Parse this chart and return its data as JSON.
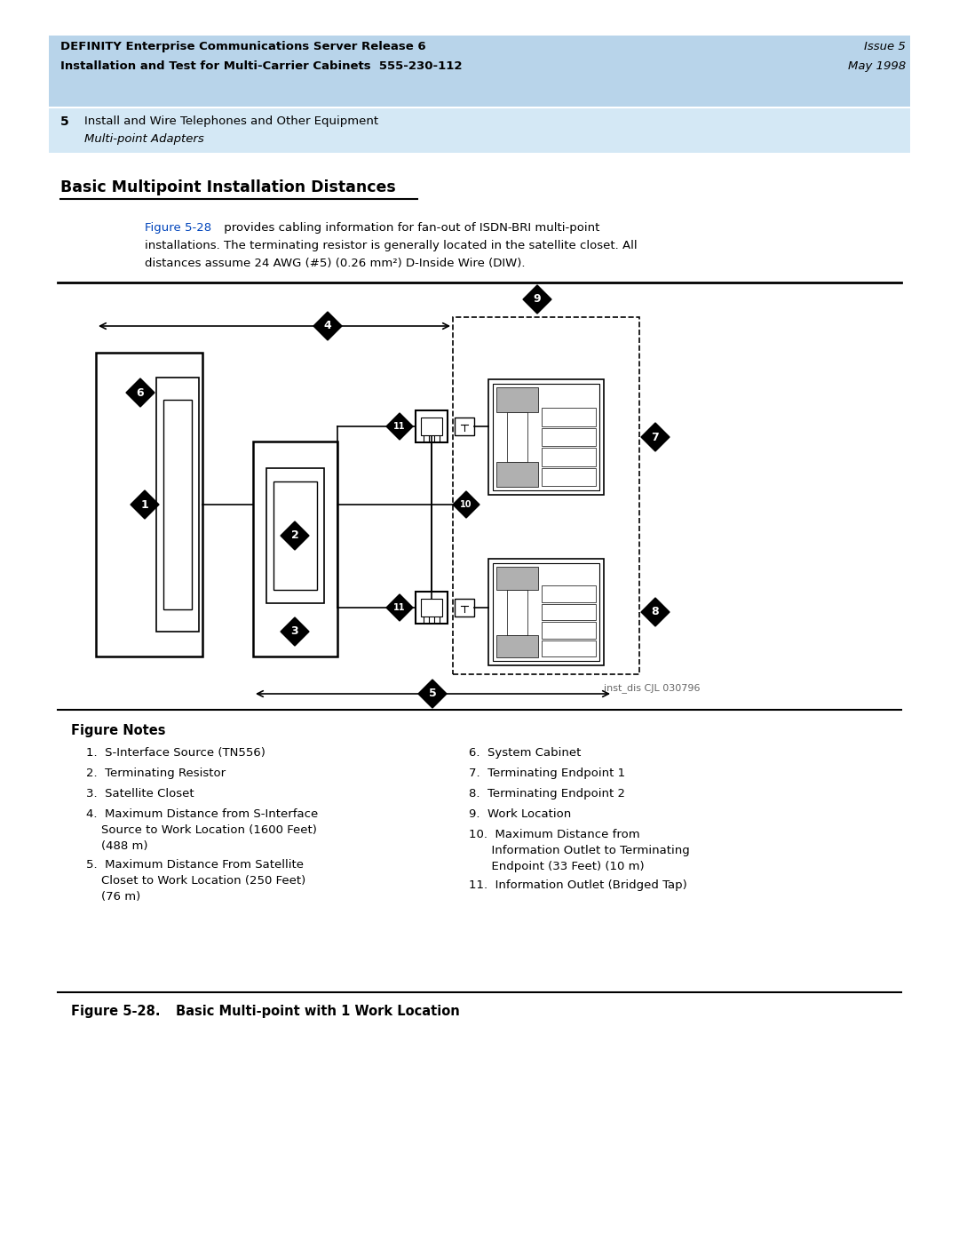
{
  "page_bg": "#ffffff",
  "header_bg": "#b8d4ea",
  "subheader_bg": "#d4e8f5",
  "header_left1": "DEFINITY Enterprise Communications Server Release 6",
  "header_left2": "Installation and Test for Multi-Carrier Cabinets  555-230-112",
  "header_right1": "Issue 5",
  "header_right2": "May 1998",
  "sub_num": "5",
  "sub_text": "Install and Wire Telephones and Other Equipment",
  "sub_italic": "Multi-point Adapters",
  "section_title": "Basic Multipoint Installation Distances",
  "body_link": "Figure 5-28",
  "body_line1": " provides cabling information for fan-out of ISDN-BRI multi-point",
  "body_line2": "installations. The terminating resistor is generally located in the satellite closet. All",
  "body_line3": "distances assume 24 AWG (#5) (0.26 mm²) D-Inside Wire (DIW).",
  "watermark": "inst_dis CJL 030796",
  "fn_title": "Figure Notes",
  "col1_notes": [
    "1.  S-Interface Source (TN556)",
    "2.  Terminating Resistor",
    "3.  Satellite Closet",
    "4.  Maximum Distance from S-Interface\n    Source to Work Location (1600 Feet)\n    (488 m)",
    "5.  Maximum Distance From Satellite\n    Closet to Work Location (250 Feet)\n    (76 m)"
  ],
  "col2_notes": [
    "6.  System Cabinet",
    "7.  Terminating Endpoint 1",
    "8.  Terminating Endpoint 2",
    "9.  Work Location",
    "10.  Maximum Distance from\n      Information Outlet to Terminating\n      Endpoint (33 Feet) (10 m)",
    "11.  Information Outlet (Bridged Tap)"
  ],
  "fig_cap_bold": "Figure 5-28.",
  "fig_cap_rest": "    Basic Multi-point with 1 Work Location"
}
